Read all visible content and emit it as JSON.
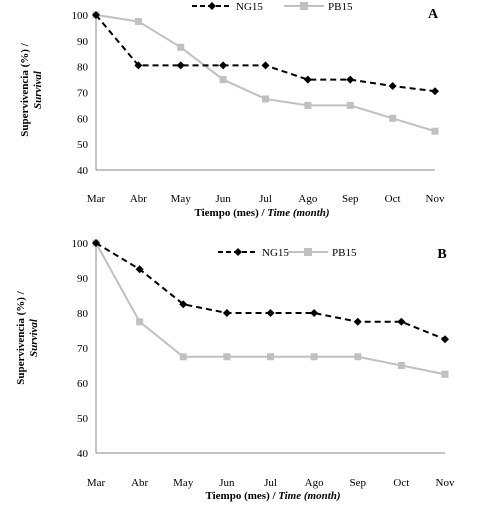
{
  "chart_data": [
    {
      "type": "line",
      "panel_label": "A",
      "categories": [
        "Mar",
        "Abr",
        "May",
        "Jun",
        "Jul",
        "Ago",
        "Sep",
        "Oct",
        "Nov"
      ],
      "series": [
        {
          "name": "NG15",
          "values": [
            100,
            80.5,
            80.5,
            80.5,
            80.5,
            75,
            75,
            72.5,
            70.5
          ],
          "color": "#000000",
          "style": "dashed",
          "marker": "diamond"
        },
        {
          "name": "PB15",
          "values": [
            100,
            97.5,
            87.5,
            75,
            67.5,
            65,
            65,
            60,
            55
          ],
          "color": "#c0c0c0",
          "style": "solid",
          "marker": "square"
        }
      ],
      "ylabel_plain": "Supervivencia (%) /",
      "ylabel_italic": "Survival",
      "xlabel_plain": "Tiempo (mes) /",
      "xlabel_italic": "Time (month)",
      "ylim": [
        40,
        100
      ],
      "yticks": [
        "40",
        "50",
        "60",
        "70",
        "80",
        "90",
        "100"
      ],
      "grid": false,
      "legend": "top-center"
    },
    {
      "type": "line",
      "panel_label": "B",
      "categories": [
        "Mar",
        "Abr",
        "May",
        "Jun",
        "Jul",
        "Ago",
        "Sep",
        "Oct",
        "Nov"
      ],
      "series": [
        {
          "name": "NG15",
          "values": [
            100,
            92.5,
            82.5,
            80,
            80,
            80,
            77.5,
            77.5,
            72.5
          ],
          "color": "#000000",
          "style": "dashed",
          "marker": "diamond"
        },
        {
          "name": "PB15",
          "values": [
            100,
            77.5,
            67.5,
            67.5,
            67.5,
            67.5,
            67.5,
            65,
            62.5
          ],
          "color": "#c0c0c0",
          "style": "solid",
          "marker": "square"
        }
      ],
      "ylabel_plain": "Supervivencia (%) /",
      "ylabel_italic": "Survival",
      "xlabel_plain": "Tiempo (mes) /",
      "xlabel_italic": "Time (month)",
      "ylim": [
        40,
        100
      ],
      "yticks": [
        "40",
        "50",
        "60",
        "70",
        "80",
        "90",
        "100"
      ],
      "grid": false,
      "legend": "top-center"
    }
  ]
}
